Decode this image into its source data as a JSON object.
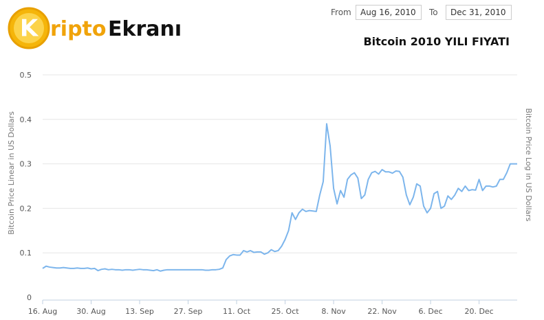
{
  "logo": {
    "letter": "K",
    "part1": "ripto",
    "part2": "Ekranı"
  },
  "range": {
    "from_label": "From",
    "from": "Aug 16, 2010",
    "to_label": "To",
    "to": "Dec 31, 2010"
  },
  "chart_data": {
    "type": "line",
    "title": "Bitcoin 2010 YILI FIYATI",
    "ylabel": "Bitcoin Price Linear in US Dollars",
    "y2label": "Bitcoin Price Log in US Dollars",
    "color": "#7cb5ec",
    "grid": true,
    "ylim": [
      0,
      0.5
    ],
    "yticks": [
      0,
      0.1,
      0.2,
      0.3,
      0.4,
      0.5
    ],
    "categories": [
      "16. Aug",
      null,
      null,
      null,
      null,
      null,
      null,
      null,
      null,
      null,
      null,
      null,
      null,
      null,
      "30. Aug",
      null,
      null,
      null,
      null,
      null,
      null,
      null,
      null,
      null,
      null,
      null,
      null,
      null,
      "13. Sep",
      null,
      null,
      null,
      null,
      null,
      null,
      null,
      null,
      null,
      null,
      null,
      null,
      null,
      "27. Sep",
      null,
      null,
      null,
      null,
      null,
      null,
      null,
      null,
      null,
      null,
      null,
      null,
      null,
      "11. Oct",
      null,
      null,
      null,
      null,
      null,
      null,
      null,
      null,
      null,
      null,
      null,
      null,
      null,
      "25. Oct",
      null,
      null,
      null,
      null,
      null,
      null,
      null,
      null,
      null,
      null,
      null,
      null,
      null,
      "8. Nov",
      null,
      null,
      null,
      null,
      null,
      null,
      null,
      null,
      null,
      null,
      null,
      null,
      null,
      "22. Nov",
      null,
      null,
      null,
      null,
      null,
      null,
      null,
      null,
      null,
      null,
      null,
      null,
      null,
      "6. Dec",
      null,
      null,
      null,
      null,
      null,
      null,
      null,
      null,
      null,
      null,
      null,
      null,
      null,
      "20. Dec",
      null,
      null,
      null,
      null,
      null,
      null,
      null,
      null,
      null,
      null,
      null
    ],
    "values": [
      0.065,
      0.07,
      0.068,
      0.067,
      0.066,
      0.066,
      0.067,
      0.066,
      0.065,
      0.065,
      0.066,
      0.065,
      0.065,
      0.066,
      0.064,
      0.065,
      0.06,
      0.063,
      0.064,
      0.062,
      0.063,
      0.062,
      0.062,
      0.061,
      0.062,
      0.062,
      0.061,
      0.062,
      0.063,
      0.062,
      0.062,
      0.061,
      0.06,
      0.062,
      0.059,
      0.061,
      0.062,
      0.062,
      0.062,
      0.062,
      0.062,
      0.062,
      0.062,
      0.062,
      0.062,
      0.062,
      0.062,
      0.061,
      0.061,
      0.062,
      0.062,
      0.063,
      0.066,
      0.085,
      0.093,
      0.096,
      0.095,
      0.095,
      0.105,
      0.102,
      0.105,
      0.101,
      0.102,
      0.102,
      0.097,
      0.1,
      0.107,
      0.103,
      0.105,
      0.115,
      0.13,
      0.15,
      0.19,
      0.175,
      0.19,
      0.198,
      0.193,
      0.195,
      0.194,
      0.193,
      0.23,
      0.26,
      0.39,
      0.34,
      0.245,
      0.21,
      0.24,
      0.225,
      0.265,
      0.275,
      0.28,
      0.268,
      0.222,
      0.23,
      0.265,
      0.28,
      0.283,
      0.277,
      0.287,
      0.282,
      0.282,
      0.279,
      0.284,
      0.283,
      0.27,
      0.23,
      0.208,
      0.225,
      0.255,
      0.25,
      0.205,
      0.19,
      0.2,
      0.233,
      0.238,
      0.2,
      0.205,
      0.228,
      0.22,
      0.23,
      0.245,
      0.238,
      0.25,
      0.24,
      0.242,
      0.241,
      0.265,
      0.24,
      0.25,
      0.25,
      0.248,
      0.25,
      0.265,
      0.265,
      0.28,
      0.3,
      0.3,
      0.3
    ]
  }
}
